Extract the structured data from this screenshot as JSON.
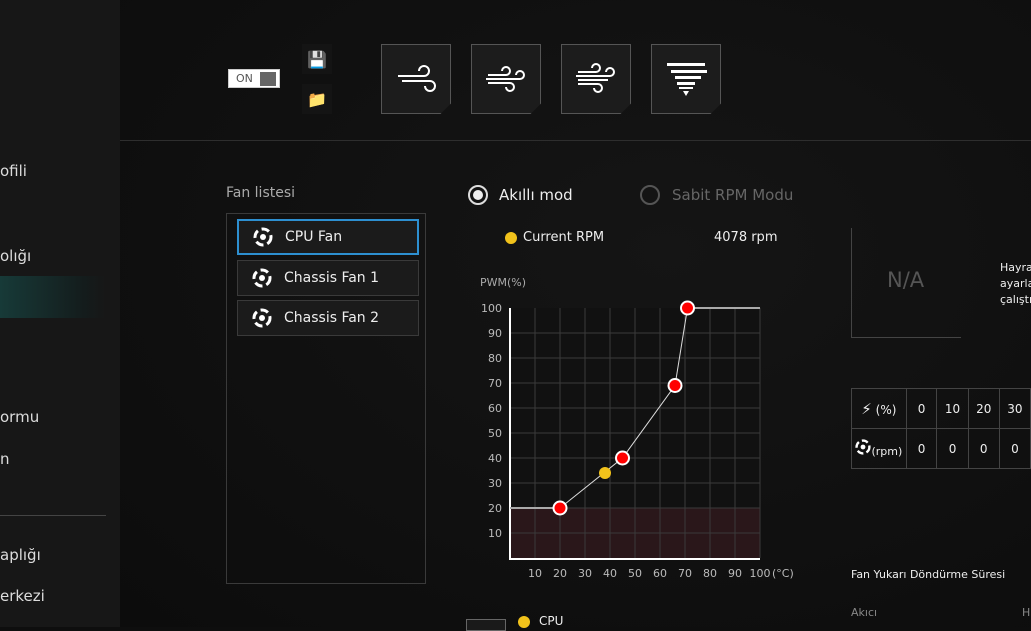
{
  "sidebar": {
    "items": [
      {
        "label": "ofili"
      },
      {
        "label": "olığı"
      },
      {
        "label": "ormu"
      },
      {
        "label": "n"
      },
      {
        "label": "aplığı"
      },
      {
        "label": "erkezi"
      }
    ]
  },
  "toolbar": {
    "toggle_label": "ON",
    "modes": [
      "silent-wind-icon",
      "standard-wind-icon",
      "turbo-wind-icon",
      "full-speed-tornado-icon"
    ]
  },
  "fan_list": {
    "title": "Fan listesi",
    "items": [
      {
        "label": "CPU Fan",
        "selected": true
      },
      {
        "label": "Chassis Fan 1",
        "selected": false
      },
      {
        "label": "Chassis Fan 2",
        "selected": false
      }
    ]
  },
  "modes": {
    "smart": "Akıllı mod",
    "fixed": "Sabit RPM Modu",
    "selected": "smart"
  },
  "current": {
    "label": "Current RPM",
    "value": "4078 rpm"
  },
  "na": "N/A",
  "side_text": [
    "Hayra",
    "ayarla",
    "çalıştı"
  ],
  "rpm_table": {
    "pct_unit": "(%)",
    "rpm_unit": "(rpm)",
    "pct": [
      "0",
      "10",
      "20",
      "30"
    ],
    "rpm": [
      "0",
      "0",
      "0",
      "0"
    ]
  },
  "spinup": {
    "title": "Fan Yukarı Döndürme Süresi",
    "left": "Akıcı",
    "right": "H"
  },
  "legend": {
    "cpu": "CPU"
  },
  "colors": {
    "accent": "#2d8fd0",
    "point": "#ff0000",
    "current": "#f1c21b"
  },
  "chart_data": {
    "type": "line",
    "ylabel": "PWM(%)",
    "xunit": "(°C)",
    "xlim": [
      0,
      100
    ],
    "ylim": [
      0,
      100
    ],
    "xticks": [
      "10",
      "20",
      "30",
      "40",
      "50",
      "60",
      "70",
      "80",
      "90",
      "100"
    ],
    "yticks": [
      "10",
      "20",
      "30",
      "40",
      "50",
      "60",
      "70",
      "80",
      "90",
      "100"
    ],
    "points": [
      {
        "x": 20,
        "y": 20
      },
      {
        "x": 45,
        "y": 40
      },
      {
        "x": 66,
        "y": 69
      },
      {
        "x": 71,
        "y": 100
      }
    ],
    "current_point": {
      "x": 38,
      "y": 34
    },
    "min_zone": 20,
    "grid": true
  }
}
